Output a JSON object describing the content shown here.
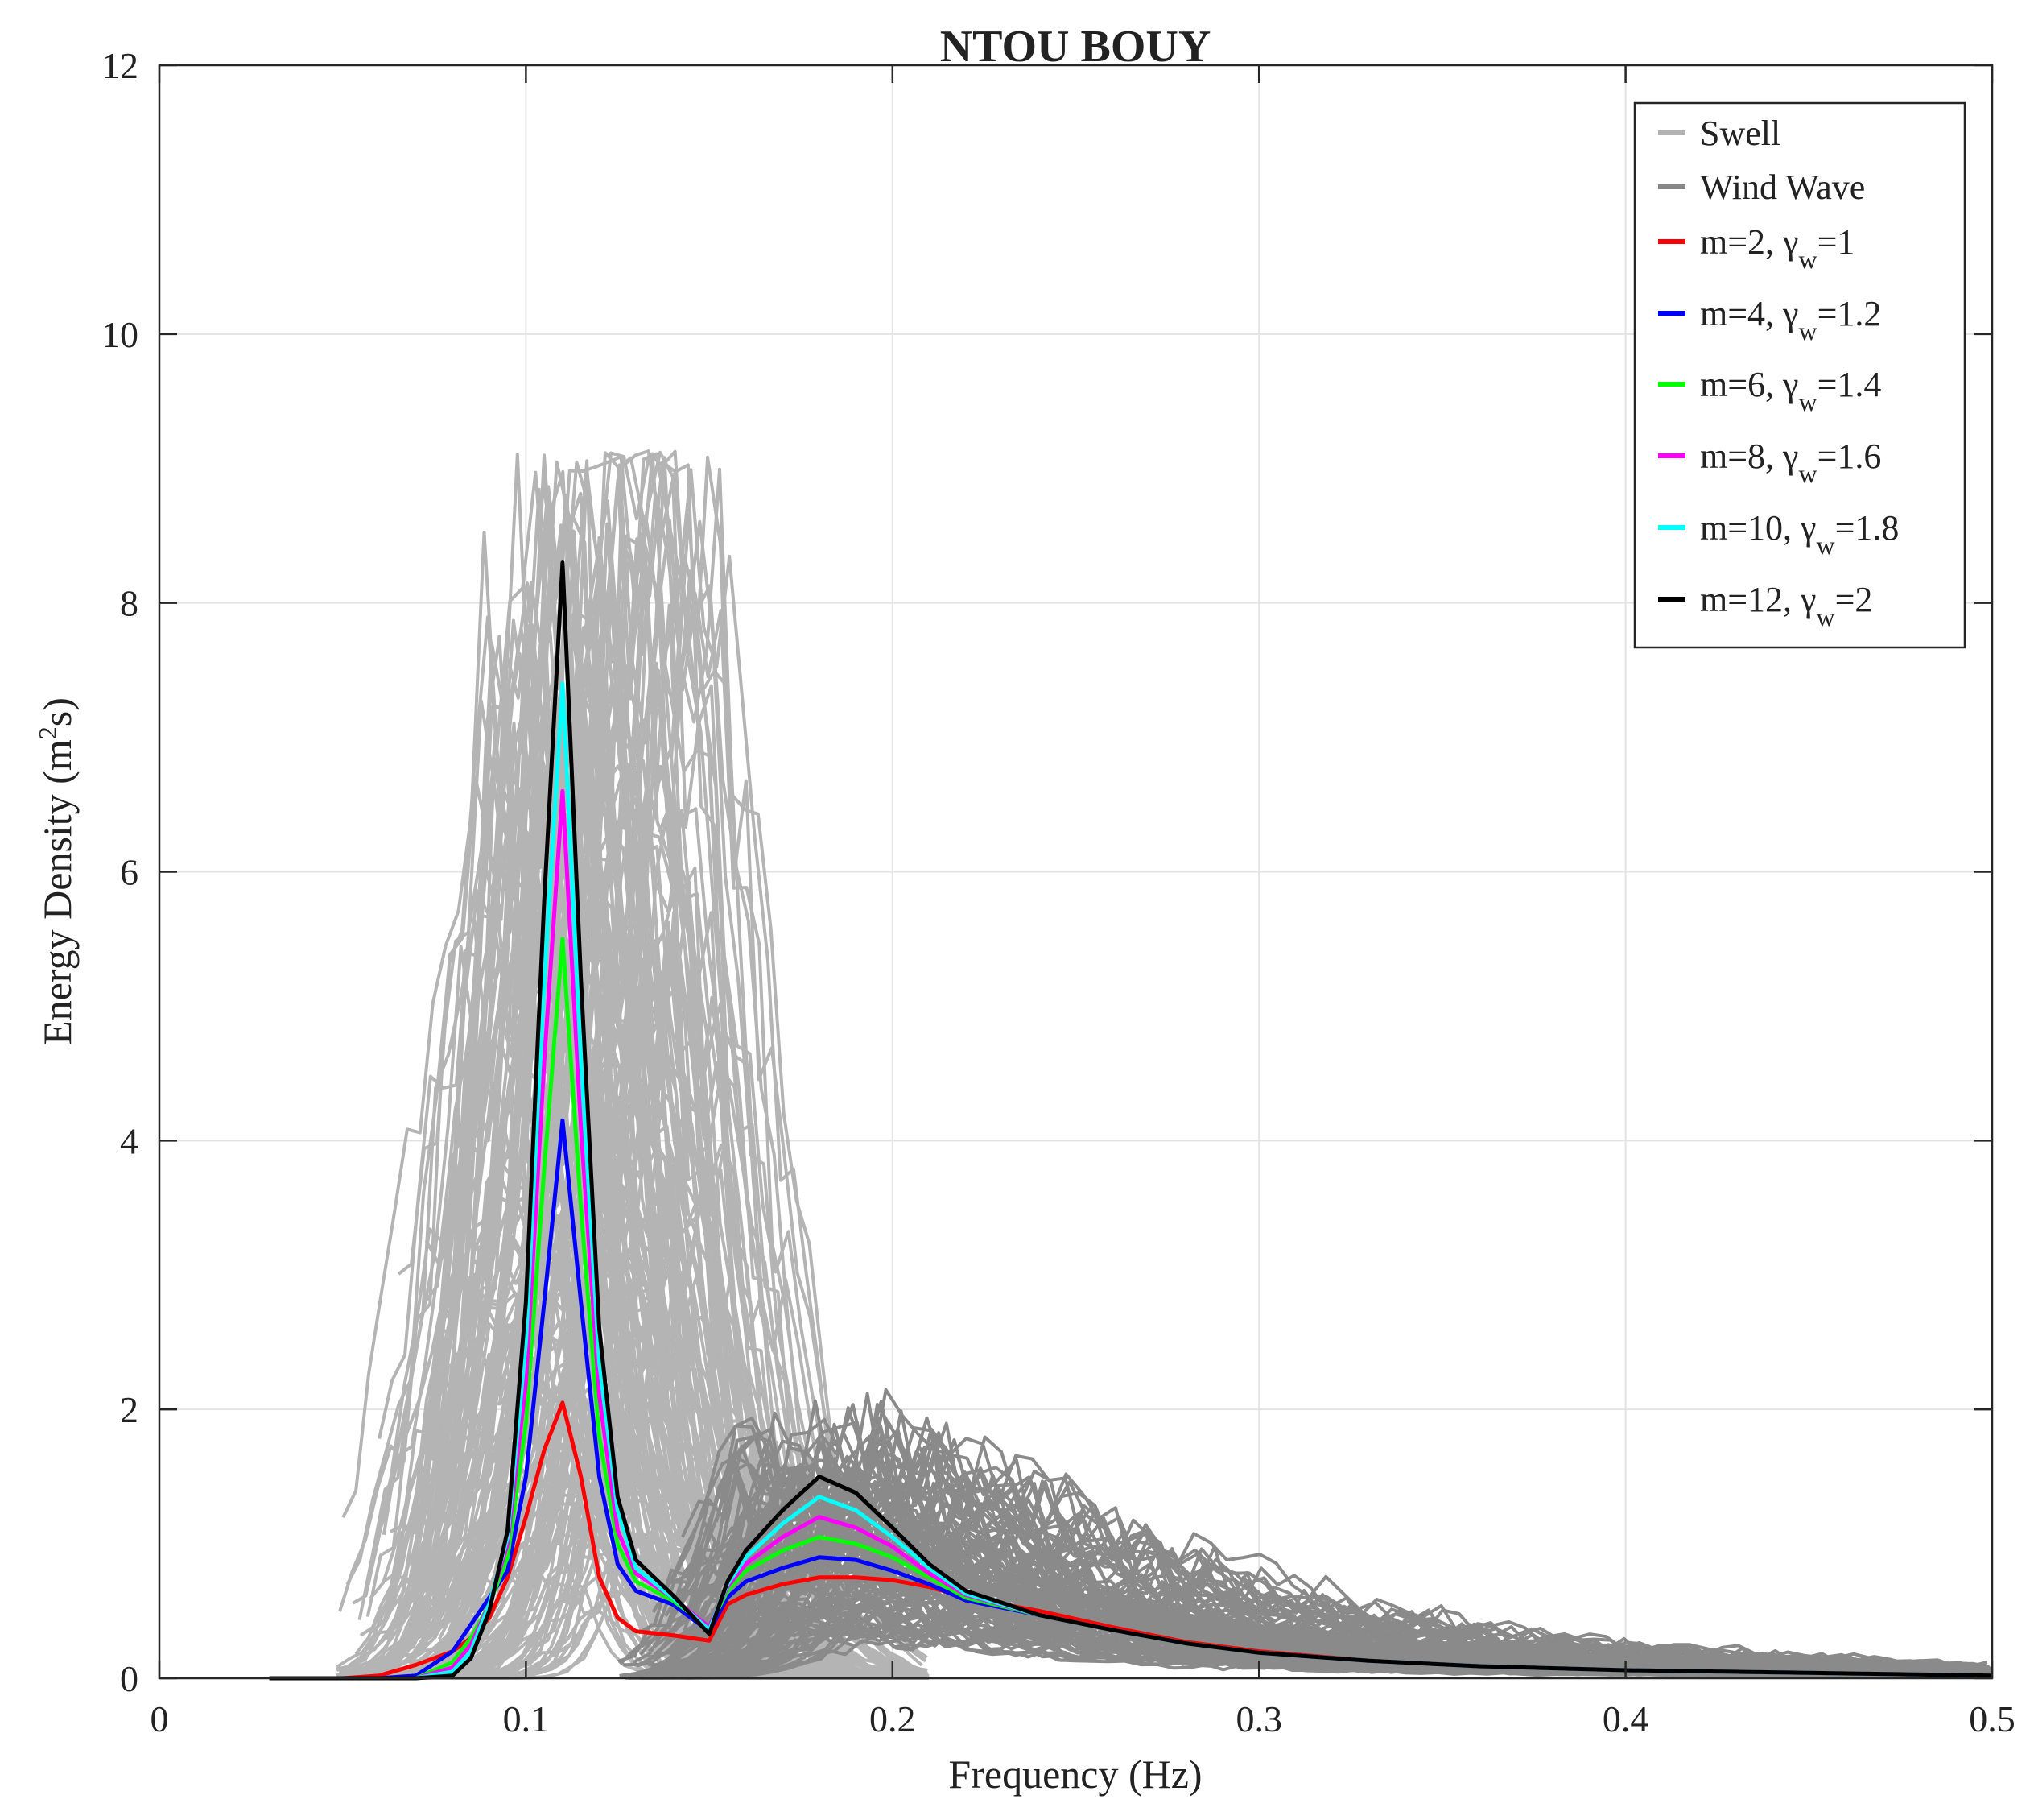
{
  "chart_data": {
    "type": "line",
    "title": "NTOU BOUY",
    "xlabel": "Frequency (Hz)",
    "ylabel_parts": [
      "Energy Density (m",
      "2",
      "s)"
    ],
    "xlim": [
      0,
      0.5
    ],
    "ylim": [
      0,
      12
    ],
    "xticks": [
      0,
      0.1,
      0.2,
      0.3,
      0.4,
      0.5
    ],
    "xtick_labels": [
      "0",
      "0.1",
      "0.2",
      "0.3",
      "0.4",
      "0.5"
    ],
    "yticks": [
      0,
      2,
      4,
      6,
      8,
      10,
      12
    ],
    "ytick_labels": [
      "0",
      "2",
      "4",
      "6",
      "8",
      "10",
      "12"
    ],
    "grid": true,
    "legend_position": "top-right",
    "legend": [
      {
        "key": "swell",
        "main": "Swell",
        "sub": "",
        "tail": "",
        "color": "#b3b3b3"
      },
      {
        "key": "windwave",
        "main": "Wind Wave",
        "sub": "",
        "tail": "",
        "color": "#888888"
      },
      {
        "key": "m2",
        "main": "m=2, γ",
        "sub": "w",
        "tail": "=1",
        "color": "#ff0000"
      },
      {
        "key": "m4",
        "main": "m=4, γ",
        "sub": "w",
        "tail": "=1.2",
        "color": "#0000ff"
      },
      {
        "key": "m6",
        "main": "m=6, γ",
        "sub": "w",
        "tail": "=1.4",
        "color": "#00ff00"
      },
      {
        "key": "m8",
        "main": "m=8, γ",
        "sub": "w",
        "tail": "=1.6",
        "color": "#ff00ff"
      },
      {
        "key": "m10",
        "main": "m=10, γ",
        "sub": "w",
        "tail": "=1.8",
        "color": "#00ffff"
      },
      {
        "key": "m12",
        "main": "m=12, γ",
        "sub": "w",
        "tail": "=2",
        "color": "#000000"
      }
    ],
    "x": [
      0.03,
      0.04,
      0.05,
      0.06,
      0.07,
      0.08,
      0.085,
      0.09,
      0.095,
      0.1,
      0.105,
      0.11,
      0.115,
      0.12,
      0.125,
      0.13,
      0.14,
      0.15,
      0.155,
      0.16,
      0.17,
      0.18,
      0.19,
      0.2,
      0.21,
      0.22,
      0.24,
      0.26,
      0.28,
      0.3,
      0.33,
      0.36,
      0.4,
      0.45,
      0.5
    ],
    "series": [
      {
        "name": "m=2, γw=1",
        "color": "#ff0000",
        "values": [
          0,
          0,
          0,
          0.02,
          0.1,
          0.2,
          0.3,
          0.45,
          0.75,
          1.2,
          1.7,
          2.05,
          1.5,
          0.75,
          0.45,
          0.35,
          0.32,
          0.28,
          0.55,
          0.62,
          0.7,
          0.75,
          0.75,
          0.73,
          0.68,
          0.6,
          0.5,
          0.38,
          0.27,
          0.2,
          0.13,
          0.09,
          0.06,
          0.04,
          0.02
        ]
      },
      {
        "name": "m=4, γw=1.2",
        "color": "#0000ff",
        "values": [
          0,
          0,
          0,
          0,
          0.02,
          0.2,
          0.4,
          0.6,
          0.8,
          1.5,
          2.8,
          4.15,
          2.8,
          1.5,
          0.85,
          0.65,
          0.55,
          0.35,
          0.6,
          0.72,
          0.82,
          0.9,
          0.88,
          0.8,
          0.7,
          0.58,
          0.47,
          0.36,
          0.26,
          0.19,
          0.13,
          0.09,
          0.06,
          0.04,
          0.02
        ]
      },
      {
        "name": "m=6, γw=1.4",
        "color": "#00ff00",
        "values": [
          0,
          0,
          0,
          0,
          0,
          0.12,
          0.3,
          0.55,
          0.9,
          1.9,
          3.8,
          5.5,
          3.5,
          1.8,
          1.0,
          0.72,
          0.58,
          0.38,
          0.65,
          0.8,
          0.95,
          1.05,
          1.0,
          0.9,
          0.75,
          0.6,
          0.47,
          0.36,
          0.26,
          0.19,
          0.13,
          0.09,
          0.06,
          0.04,
          0.02
        ]
      },
      {
        "name": "m=8, γw=1.6",
        "color": "#ff00ff",
        "values": [
          0,
          0,
          0,
          0,
          0,
          0.08,
          0.25,
          0.55,
          1.0,
          2.2,
          4.6,
          6.6,
          4.1,
          2.1,
          1.1,
          0.78,
          0.6,
          0.38,
          0.68,
          0.85,
          1.05,
          1.2,
          1.12,
          0.98,
          0.78,
          0.62,
          0.47,
          0.36,
          0.26,
          0.19,
          0.13,
          0.09,
          0.06,
          0.04,
          0.02
        ]
      },
      {
        "name": "m=10, γw=1.8",
        "color": "#00ffff",
        "values": [
          0,
          0,
          0,
          0,
          0,
          0.05,
          0.2,
          0.55,
          1.05,
          2.5,
          5.2,
          7.4,
          4.6,
          2.35,
          1.25,
          0.82,
          0.6,
          0.36,
          0.7,
          0.9,
          1.15,
          1.35,
          1.25,
          1.05,
          0.82,
          0.63,
          0.47,
          0.36,
          0.26,
          0.19,
          0.13,
          0.09,
          0.06,
          0.04,
          0.02
        ]
      },
      {
        "name": "m=12, γw=2",
        "color": "#000000",
        "values": [
          0,
          0,
          0,
          0,
          0,
          0.02,
          0.15,
          0.5,
          1.1,
          2.8,
          5.8,
          8.3,
          5.2,
          2.6,
          1.35,
          0.88,
          0.62,
          0.33,
          0.72,
          0.95,
          1.25,
          1.5,
          1.38,
          1.12,
          0.85,
          0.65,
          0.47,
          0.36,
          0.26,
          0.19,
          0.13,
          0.09,
          0.06,
          0.04,
          0.02
        ]
      }
    ]
  }
}
